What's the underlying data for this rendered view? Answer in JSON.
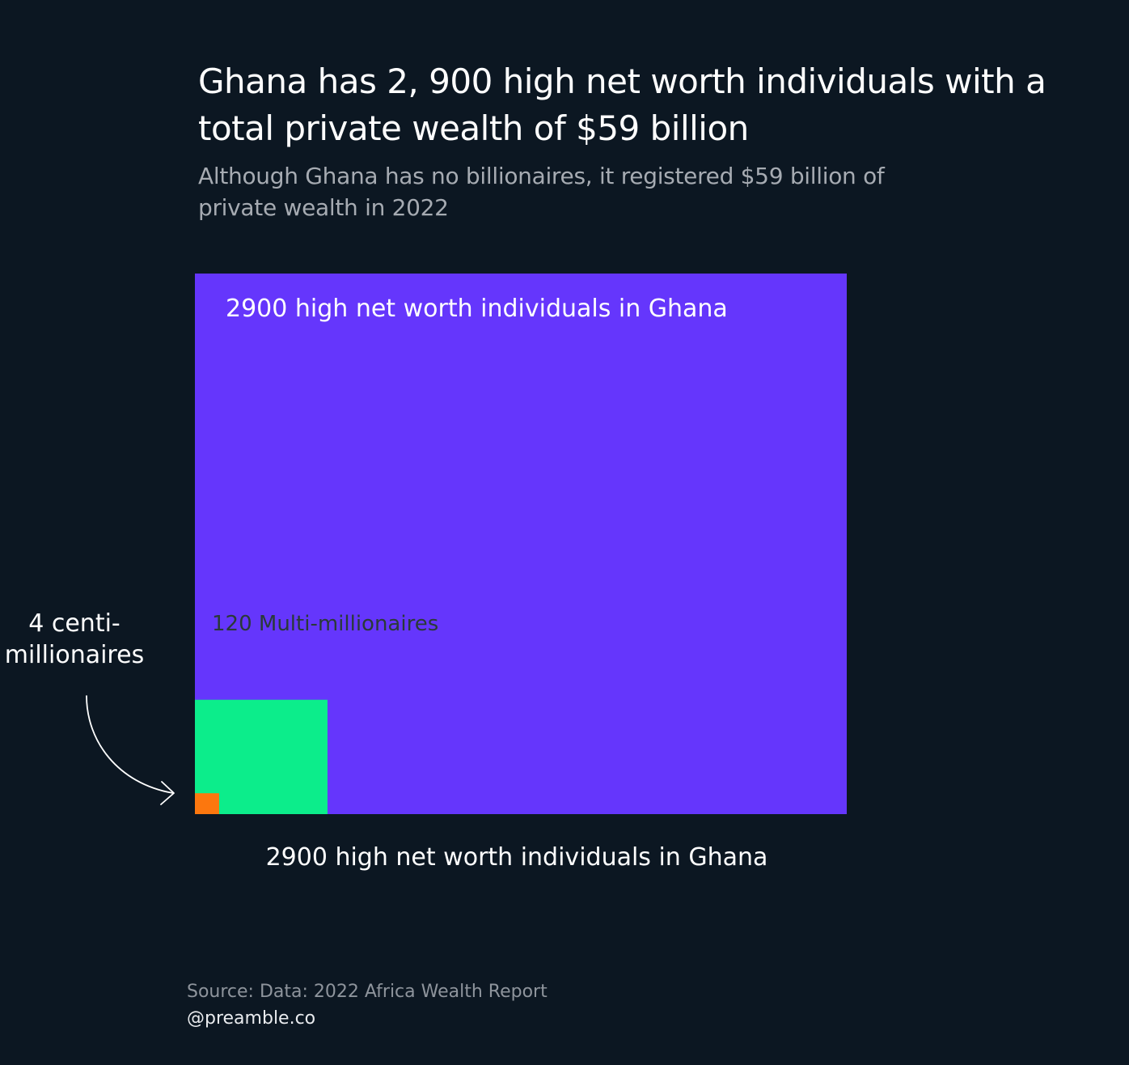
{
  "chart_data": {
    "type": "nested-area",
    "title": "Ghana has 2, 900 high net worth individuals with a total private wealth of $59 billion",
    "subtitle": "Although Ghana has no billionaires, it registered $59 billion of private wealth in 2022",
    "xlabel": "2900 high net worth individuals in Ghana",
    "categories": [
      {
        "label": "2900 high net worth individuals in Ghana",
        "value": 2900,
        "color": "#6536fc",
        "text_color": "#ffffff"
      },
      {
        "label": "120 Multi-millionaires",
        "value": 120,
        "color": "#0ced8b",
        "text_color": "#2a3a38"
      },
      {
        "label": "4 centi-millionaires",
        "value": 4,
        "color": "#fc770e",
        "text_color": "#ffffff"
      }
    ],
    "annotation": {
      "lines": [
        "4 centi-",
        "millionaires"
      ]
    }
  },
  "footer": {
    "source": "Source: Data: 2022 Africa Wealth Report",
    "handle": "@preamble.co"
  }
}
